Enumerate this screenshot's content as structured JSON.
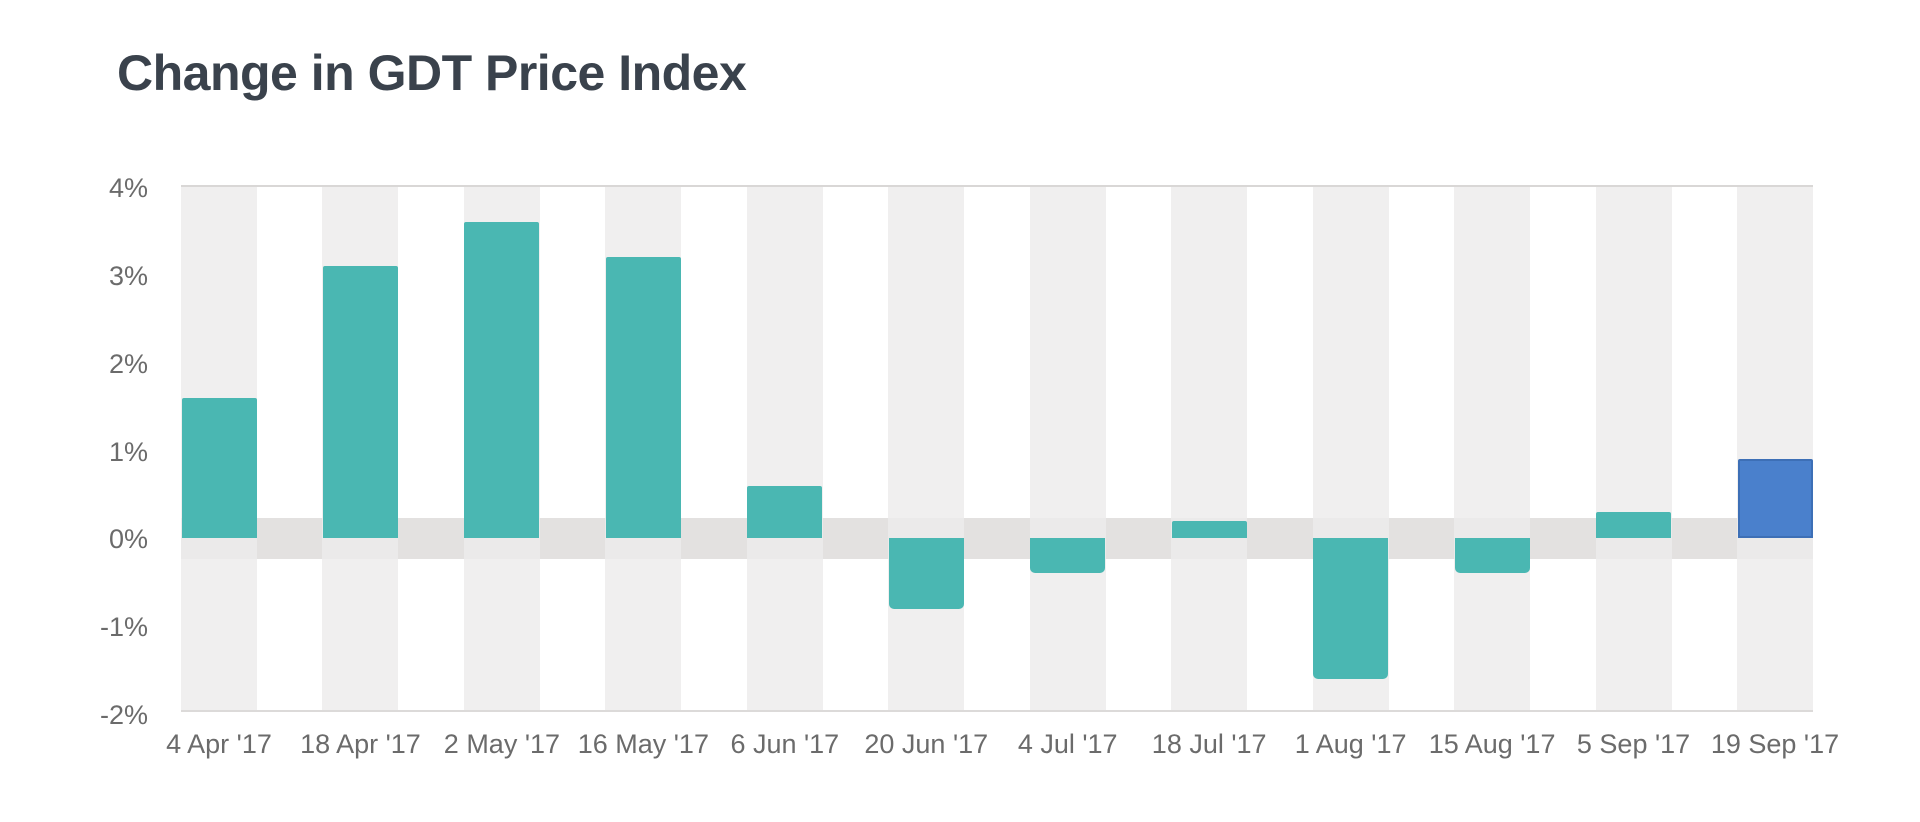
{
  "title": "Change in GDT Price Index",
  "chart_data": {
    "type": "bar",
    "title": "Change in GDT Price Index",
    "categories": [
      "4 Apr '17",
      "18 Apr '17",
      "2 May '17",
      "16 May '17",
      "6 Jun '17",
      "20 Jun '17",
      "4 Jul '17",
      "18 Jul '17",
      "1 Aug '17",
      "15 Aug '17",
      "5 Sep '17",
      "19 Sep '17"
    ],
    "values": [
      1.6,
      3.1,
      3.6,
      3.2,
      0.6,
      -0.8,
      -0.4,
      0.2,
      -1.6,
      -0.4,
      0.3,
      0.9
    ],
    "unit": "%",
    "xlabel": "",
    "ylabel": "",
    "ylim": [
      -2,
      4
    ],
    "ytick_labels": [
      "4%",
      "3%",
      "2%",
      "1%",
      "0%",
      "-1%",
      "-2%"
    ],
    "ytick_values": [
      4,
      3,
      2,
      1,
      0,
      -1,
      -2
    ],
    "grid": "off",
    "legend": "none",
    "highlight_index": 11,
    "colors": {
      "bar": "#4ab7b2",
      "highlight_bar": "#4a80cc",
      "highlight_border": "#3d6fb6",
      "column_stripe": "#f1f0ef",
      "zero_band": "#e3e1e0",
      "plot_border": "#d9d7d6",
      "axis_label": "#6b6b6b",
      "title": "#3a424c",
      "background": "#ffffff"
    }
  }
}
